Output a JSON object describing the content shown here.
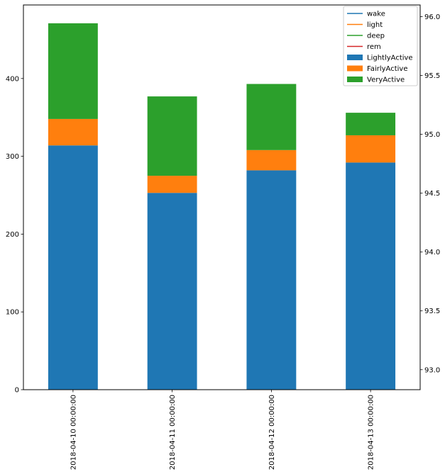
{
  "chart_data": {
    "type": "bar",
    "stacked": true,
    "title": "",
    "xlabel": "",
    "ylabel": "",
    "categories": [
      "2018-04-10 00:00:00",
      "2018-04-11 00:00:00",
      "2018-04-12 00:00:00",
      "2018-04-13 00:00:00"
    ],
    "series": [
      {
        "name": "LightlyActive",
        "color": "#1f77b4",
        "values": [
          314,
          253,
          282,
          292
        ]
      },
      {
        "name": "FairlyActive",
        "color": "#ff7f0e",
        "values": [
          34,
          22,
          26,
          35
        ]
      },
      {
        "name": "VeryActive",
        "color": "#2ca02c",
        "values": [
          123,
          102,
          85,
          29
        ]
      }
    ],
    "line_series": [
      {
        "name": "wake",
        "color": "#1f77b4",
        "values": []
      },
      {
        "name": "light",
        "color": "#ff7f0e",
        "values": []
      },
      {
        "name": "deep",
        "color": "#2ca02c",
        "values": []
      },
      {
        "name": "rem",
        "color": "#d62728",
        "values": []
      }
    ],
    "ylim": [
      0,
      494.55
    ],
    "yticks": [
      0,
      100,
      200,
      300,
      400
    ],
    "ylim_right": [
      92.83,
      96.1
    ],
    "yticks_right": [
      "93.0",
      "93.5",
      "94.0",
      "94.5",
      "95.0",
      "95.5",
      "96.0"
    ],
    "legend_position": "top-right",
    "legend_order": [
      "wake",
      "light",
      "deep",
      "rem",
      "LightlyActive",
      "FairlyActive",
      "VeryActive"
    ],
    "grid": false
  }
}
